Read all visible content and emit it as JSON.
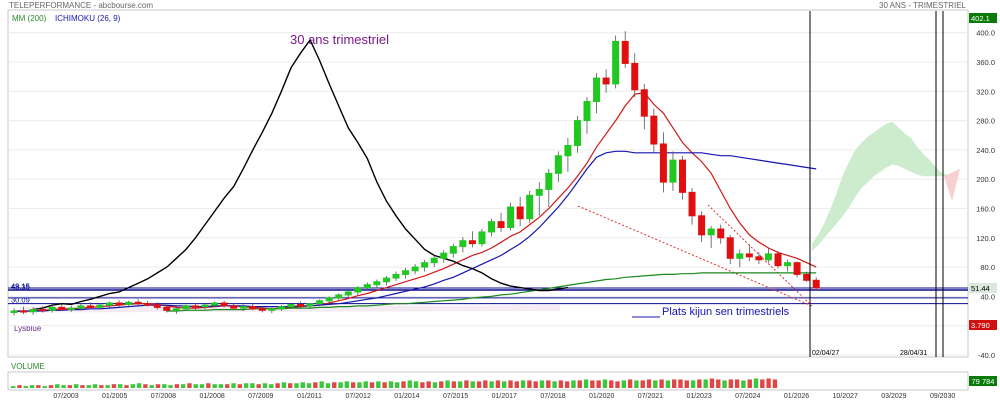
{
  "header": {
    "left": "TELEPERFORMANCE - abcbourse.com",
    "right": "30 ANS - TRIMESTRIEL"
  },
  "legend": {
    "mm": "MM (200)",
    "ichimoku": "ICHIMOKU (26, 9)",
    "lysblue": "Lysblue"
  },
  "annotations": {
    "title": "30 ans trimestriel",
    "plats": "Plats kijun sen trimestriels",
    "date_label": "02/04/27",
    "date_label2": "28/04/31"
  },
  "colors": {
    "up": "#22c822",
    "down": "#e01010",
    "kijun": "#1515b0",
    "tenkan": "#d01818",
    "mm200": "#1a8a1a",
    "lagging": "#000000",
    "cloud": "#cdeccd",
    "cloud_red": "#f8d0d0",
    "hline": "#0a0a90",
    "last_badge": "#dde8dd",
    "red_badge": "#d01010",
    "vol_badge": "#0a7a0a"
  },
  "chart_data": {
    "type": "candlestick",
    "price_axis": {
      "ticks": [
        400,
        360,
        320,
        280,
        240,
        200,
        160,
        120,
        80,
        40,
        0,
        -40
      ],
      "tick_labels": [
        "400.0",
        "360.0",
        "320.0",
        "280.0",
        "240.0",
        "200.0",
        "160.0",
        "120.0",
        "80.0",
        "40.0",
        "0.0",
        "-40.0"
      ],
      "ylim": [
        -40,
        420
      ]
    },
    "x_axis_labels": [
      "07/2003",
      "01/2005",
      "07/2008",
      "01/2008",
      "07/2009",
      "01/2011",
      "07/2012",
      "01/2014",
      "07/2015",
      "01/2017",
      "07/2018",
      "01/2020",
      "07/2021",
      "01/2023",
      "07/2024",
      "01/2026",
      "10/2027",
      "03/2029",
      "09/2030"
    ],
    "price_badges": [
      {
        "label": "402.1",
        "value": 402.1,
        "style": "green"
      },
      {
        "label": "51.44",
        "value": 51.44,
        "style": "last"
      },
      {
        "label": "3.790",
        "value": 3.79,
        "style": "red"
      }
    ],
    "horizontal_lines": [
      {
        "label": "49.15",
        "value": 49.15
      },
      {
        "label": "48.35",
        "value": 48.35
      },
      {
        "label": "30.09",
        "value": 30.09
      },
      {
        "label": "",
        "value": 51.44
      },
      {
        "label": "",
        "value": 38.0
      }
    ],
    "candles": [
      {
        "o": 18,
        "h": 24,
        "l": 14,
        "c": 20
      },
      {
        "o": 20,
        "h": 26,
        "l": 16,
        "c": 19
      },
      {
        "o": 19,
        "h": 25,
        "l": 15,
        "c": 22
      },
      {
        "o": 22,
        "h": 27,
        "l": 18,
        "c": 21
      },
      {
        "o": 21,
        "h": 28,
        "l": 18,
        "c": 25
      },
      {
        "o": 25,
        "h": 29,
        "l": 20,
        "c": 22
      },
      {
        "o": 22,
        "h": 27,
        "l": 19,
        "c": 24
      },
      {
        "o": 24,
        "h": 30,
        "l": 21,
        "c": 27
      },
      {
        "o": 27,
        "h": 32,
        "l": 23,
        "c": 25
      },
      {
        "o": 25,
        "h": 31,
        "l": 22,
        "c": 28
      },
      {
        "o": 28,
        "h": 33,
        "l": 25,
        "c": 31
      },
      {
        "o": 31,
        "h": 35,
        "l": 26,
        "c": 29
      },
      {
        "o": 29,
        "h": 34,
        "l": 25,
        "c": 32
      },
      {
        "o": 32,
        "h": 36,
        "l": 27,
        "c": 30
      },
      {
        "o": 30,
        "h": 34,
        "l": 26,
        "c": 28
      },
      {
        "o": 28,
        "h": 32,
        "l": 22,
        "c": 25
      },
      {
        "o": 25,
        "h": 29,
        "l": 18,
        "c": 21
      },
      {
        "o": 21,
        "h": 26,
        "l": 16,
        "c": 23
      },
      {
        "o": 23,
        "h": 29,
        "l": 20,
        "c": 27
      },
      {
        "o": 27,
        "h": 31,
        "l": 22,
        "c": 26
      },
      {
        "o": 26,
        "h": 30,
        "l": 22,
        "c": 28
      },
      {
        "o": 28,
        "h": 33,
        "l": 25,
        "c": 31
      },
      {
        "o": 31,
        "h": 34,
        "l": 25,
        "c": 27
      },
      {
        "o": 27,
        "h": 31,
        "l": 22,
        "c": 24
      },
      {
        "o": 24,
        "h": 29,
        "l": 20,
        "c": 26
      },
      {
        "o": 26,
        "h": 30,
        "l": 21,
        "c": 23
      },
      {
        "o": 23,
        "h": 27,
        "l": 18,
        "c": 21
      },
      {
        "o": 21,
        "h": 25,
        "l": 17,
        "c": 23
      },
      {
        "o": 23,
        "h": 28,
        "l": 20,
        "c": 26
      },
      {
        "o": 26,
        "h": 31,
        "l": 23,
        "c": 29
      },
      {
        "o": 29,
        "h": 33,
        "l": 24,
        "c": 27
      },
      {
        "o": 27,
        "h": 31,
        "l": 23,
        "c": 30
      },
      {
        "o": 30,
        "h": 36,
        "l": 27,
        "c": 34
      },
      {
        "o": 34,
        "h": 40,
        "l": 30,
        "c": 38
      },
      {
        "o": 38,
        "h": 44,
        "l": 35,
        "c": 42
      },
      {
        "o": 42,
        "h": 49,
        "l": 38,
        "c": 46
      },
      {
        "o": 46,
        "h": 54,
        "l": 42,
        "c": 52
      },
      {
        "o": 52,
        "h": 59,
        "l": 48,
        "c": 56
      },
      {
        "o": 56,
        "h": 63,
        "l": 51,
        "c": 60
      },
      {
        "o": 60,
        "h": 68,
        "l": 55,
        "c": 65
      },
      {
        "o": 65,
        "h": 74,
        "l": 61,
        "c": 70
      },
      {
        "o": 70,
        "h": 79,
        "l": 64,
        "c": 75
      },
      {
        "o": 75,
        "h": 84,
        "l": 70,
        "c": 80
      },
      {
        "o": 80,
        "h": 90,
        "l": 74,
        "c": 86
      },
      {
        "o": 86,
        "h": 96,
        "l": 80,
        "c": 92
      },
      {
        "o": 92,
        "h": 103,
        "l": 86,
        "c": 99
      },
      {
        "o": 99,
        "h": 112,
        "l": 93,
        "c": 108
      },
      {
        "o": 108,
        "h": 121,
        "l": 100,
        "c": 116
      },
      {
        "o": 116,
        "h": 129,
        "l": 107,
        "c": 112
      },
      {
        "o": 112,
        "h": 132,
        "l": 108,
        "c": 128
      },
      {
        "o": 128,
        "h": 146,
        "l": 122,
        "c": 142
      },
      {
        "o": 142,
        "h": 154,
        "l": 128,
        "c": 134
      },
      {
        "o": 134,
        "h": 168,
        "l": 130,
        "c": 162
      },
      {
        "o": 162,
        "h": 176,
        "l": 136,
        "c": 146
      },
      {
        "o": 146,
        "h": 184,
        "l": 140,
        "c": 178
      },
      {
        "o": 178,
        "h": 196,
        "l": 150,
        "c": 186
      },
      {
        "o": 186,
        "h": 214,
        "l": 162,
        "c": 208
      },
      {
        "o": 208,
        "h": 238,
        "l": 196,
        "c": 232
      },
      {
        "o": 232,
        "h": 256,
        "l": 210,
        "c": 246
      },
      {
        "o": 246,
        "h": 286,
        "l": 236,
        "c": 280
      },
      {
        "o": 280,
        "h": 312,
        "l": 262,
        "c": 306
      },
      {
        "o": 306,
        "h": 345,
        "l": 290,
        "c": 338
      },
      {
        "o": 338,
        "h": 350,
        "l": 318,
        "c": 330
      },
      {
        "o": 330,
        "h": 396,
        "l": 324,
        "c": 388
      },
      {
        "o": 388,
        "h": 402,
        "l": 352,
        "c": 358
      },
      {
        "o": 358,
        "h": 372,
        "l": 312,
        "c": 322
      },
      {
        "o": 322,
        "h": 330,
        "l": 268,
        "c": 286
      },
      {
        "o": 286,
        "h": 296,
        "l": 236,
        "c": 248
      },
      {
        "o": 248,
        "h": 264,
        "l": 182,
        "c": 196
      },
      {
        "o": 196,
        "h": 238,
        "l": 184,
        "c": 226
      },
      {
        "o": 226,
        "h": 232,
        "l": 172,
        "c": 182
      },
      {
        "o": 182,
        "h": 188,
        "l": 138,
        "c": 150
      },
      {
        "o": 150,
        "h": 156,
        "l": 114,
        "c": 124
      },
      {
        "o": 124,
        "h": 136,
        "l": 106,
        "c": 132
      },
      {
        "o": 132,
        "h": 138,
        "l": 112,
        "c": 120
      },
      {
        "o": 120,
        "h": 124,
        "l": 84,
        "c": 92
      },
      {
        "o": 92,
        "h": 104,
        "l": 80,
        "c": 98
      },
      {
        "o": 98,
        "h": 110,
        "l": 88,
        "c": 94
      },
      {
        "o": 94,
        "h": 100,
        "l": 84,
        "c": 90
      },
      {
        "o": 90,
        "h": 106,
        "l": 86,
        "c": 98
      },
      {
        "o": 98,
        "h": 102,
        "l": 78,
        "c": 82
      },
      {
        "o": 82,
        "h": 90,
        "l": 74,
        "c": 86
      },
      {
        "o": 86,
        "h": 88,
        "l": 66,
        "c": 70
      },
      {
        "o": 70,
        "h": 74,
        "l": 60,
        "c": 62
      },
      {
        "o": 62,
        "h": 66,
        "l": 48,
        "c": 51.44
      }
    ],
    "series": [
      {
        "name": "Tenkan",
        "values": [
          19,
          20,
          20,
          21,
          22,
          23,
          23,
          24,
          25,
          26,
          27,
          28,
          29,
          30,
          30,
          29,
          27,
          25,
          24,
          24,
          25,
          26,
          27,
          27,
          26,
          25,
          24,
          23,
          24,
          25,
          26,
          27,
          28,
          31,
          34,
          37,
          41,
          44,
          48,
          52,
          56,
          60,
          64,
          68,
          73,
          78,
          84,
          90,
          96,
          100,
          106,
          114,
          122,
          128,
          138,
          148,
          160,
          174,
          188,
          204,
          222,
          244,
          262,
          280,
          300,
          316,
          318,
          302,
          290,
          270,
          250,
          236,
          224,
          208,
          184,
          160,
          140,
          124,
          114,
          106,
          100,
          96,
          92,
          86,
          80
        ]
      },
      {
        "name": "Kijun",
        "values": [
          20,
          20,
          20,
          20,
          21,
          21,
          22,
          22,
          23,
          23,
          24,
          25,
          26,
          27,
          28,
          28,
          28,
          27,
          27,
          26,
          26,
          27,
          27,
          27,
          27,
          26,
          26,
          26,
          26,
          26,
          27,
          27,
          28,
          29,
          30,
          32,
          34,
          36,
          38,
          41,
          44,
          47,
          50,
          53,
          57,
          62,
          66,
          72,
          78,
          84,
          90,
          96,
          104,
          112,
          122,
          134,
          148,
          162,
          178,
          196,
          214,
          230,
          236,
          238,
          238,
          236,
          236,
          236,
          236,
          236,
          236,
          236,
          236,
          234,
          232,
          232,
          230,
          228,
          226,
          224,
          222,
          220,
          218,
          216,
          214
        ]
      },
      {
        "name": "MM (200)",
        "values": [
          null,
          null,
          null,
          null,
          null,
          null,
          null,
          null,
          null,
          null,
          null,
          null,
          null,
          null,
          null,
          null,
          20,
          20,
          21,
          21,
          21,
          22,
          22,
          22,
          22,
          23,
          23,
          23,
          23,
          24,
          24,
          24,
          25,
          25,
          26,
          26,
          27,
          27,
          28,
          29,
          30,
          30,
          31,
          32,
          33,
          34,
          35,
          36,
          38,
          39,
          40,
          42,
          43,
          45,
          47,
          49,
          51,
          53,
          55,
          57,
          59,
          61,
          63,
          64,
          66,
          67,
          68,
          69,
          70,
          70,
          71,
          71,
          72,
          72,
          72,
          72,
          72,
          72,
          72,
          72,
          72,
          72,
          72,
          72,
          72
        ]
      },
      {
        "name": "Chikou",
        "values": [
          22,
          24,
          28,
          30,
          29,
          33,
          36,
          40,
          44,
          46,
          52,
          58,
          64,
          72,
          80,
          92,
          104,
          120,
          138,
          156,
          174,
          190,
          214,
          240,
          264,
          290,
          320,
          352,
          372,
          390,
          362,
          330,
          300,
          270,
          250,
          228,
          196,
          170,
          150,
          132,
          118,
          104,
          96,
          92,
          88,
          82,
          78,
          72,
          64,
          58,
          54,
          52,
          50,
          48,
          48,
          50,
          52
        ]
      },
      {
        "name": "Senkou A",
        "values": [
          null,
          null,
          null,
          null,
          null,
          null,
          null,
          null,
          null,
          null,
          null,
          null,
          null,
          null,
          null,
          null,
          null,
          null,
          null,
          null,
          null,
          null,
          null,
          null,
          null,
          null,
          null,
          null,
          null,
          null,
          null,
          null,
          null,
          null,
          null,
          null,
          null,
          null,
          null,
          null,
          null,
          null,
          null,
          null,
          null,
          null,
          null,
          null,
          null,
          null,
          null,
          null,
          null,
          null,
          null,
          null,
          null,
          null,
          null,
          null,
          null,
          null,
          null,
          null,
          null,
          null,
          null,
          null,
          null,
          null,
          null,
          null,
          null,
          null,
          null,
          null,
          null,
          null,
          null,
          null,
          null,
          null,
          null,
          null,
          null
        ]
      },
      {
        "name": "Senkou B",
        "values": []
      }
    ],
    "cloud_future_top": [
      112,
      124,
      140,
      160,
      182,
      206,
      224,
      240,
      250,
      258,
      264,
      270,
      276,
      278,
      270,
      262,
      256,
      244,
      234,
      226,
      216,
      208,
      206
    ],
    "cloud_future_bottom": [
      102,
      110,
      120,
      130,
      140,
      150,
      162,
      176,
      188,
      196,
      204,
      210,
      216,
      220,
      218,
      214,
      210,
      206,
      204,
      204,
      204,
      204,
      204
    ],
    "volume": {
      "label": "VOLUME",
      "last_value_label": "79 784",
      "bars": [
        2,
        3,
        2,
        3,
        3,
        2,
        3,
        4,
        3,
        3,
        4,
        3,
        3,
        4,
        3,
        3,
        4,
        4,
        3,
        4,
        5,
        4,
        3,
        4,
        4,
        3,
        4,
        4,
        5,
        4,
        4,
        5,
        4,
        4,
        4,
        5,
        4,
        5,
        5,
        4,
        5,
        4,
        5,
        6,
        5,
        5,
        6,
        5,
        6,
        7,
        5,
        6,
        6,
        7,
        6,
        6,
        7,
        6,
        7,
        6,
        7,
        6,
        7,
        8,
        7,
        6,
        7,
        6,
        7,
        8,
        7,
        7,
        8,
        7,
        7,
        8,
        7,
        8,
        7,
        8,
        7,
        8,
        8,
        7,
        8,
        8,
        7,
        8,
        7,
        8,
        8,
        9,
        8,
        8,
        9,
        8,
        7,
        8,
        9,
        8,
        8,
        9,
        8,
        9,
        8,
        9,
        9,
        8,
        8,
        9,
        9,
        10,
        9,
        8,
        9,
        9,
        8,
        9,
        10,
        9,
        10,
        9
      ],
      "bar_up": [
        1,
        0,
        1,
        1,
        0,
        1,
        0,
        1,
        1,
        0,
        1,
        0,
        1,
        1,
        0,
        1,
        0,
        1,
        0,
        1,
        1,
        0,
        1,
        0,
        1,
        1,
        0,
        1,
        0,
        1,
        1,
        0,
        1,
        1,
        0,
        1,
        0,
        1,
        1,
        0,
        1,
        1,
        0,
        1,
        0,
        1,
        1,
        1,
        0,
        1,
        1,
        0,
        1,
        1,
        0,
        1,
        1,
        0,
        1,
        0,
        1,
        1,
        0,
        1,
        1,
        0,
        0,
        1,
        0,
        1,
        0,
        1,
        0,
        1,
        0,
        0,
        1,
        0,
        1,
        0,
        0,
        1,
        0,
        0,
        1,
        0,
        1,
        0,
        0,
        1,
        0,
        1,
        0,
        0,
        1,
        0,
        0,
        1,
        0,
        1,
        0,
        0,
        1,
        0,
        1,
        0,
        0,
        0,
        1,
        0,
        1,
        0,
        0,
        1,
        0,
        0,
        1,
        0,
        1,
        0,
        0,
        0
      ]
    }
  }
}
